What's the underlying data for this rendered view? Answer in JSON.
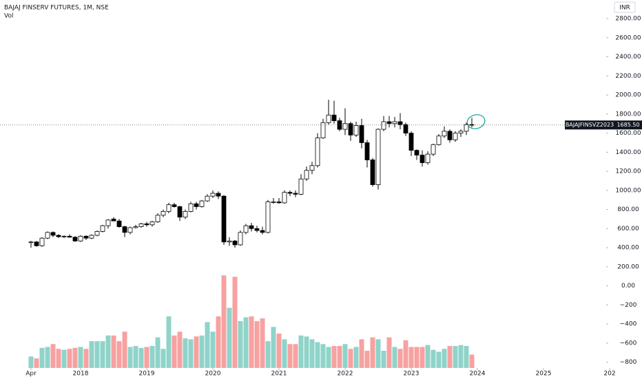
{
  "chart_data": {
    "type": "candlestick",
    "title": "BAJAJ FINSERV FUTURES, 1M, NSE",
    "currency": "INR",
    "x": [
      "2017-04",
      "2017-05",
      "2017-06",
      "2017-07",
      "2017-08",
      "2017-09",
      "2017-10",
      "2017-11",
      "2017-12",
      "2018-01",
      "2018-02",
      "2018-03",
      "2018-04",
      "2018-05",
      "2018-06",
      "2018-07",
      "2018-08",
      "2018-09",
      "2018-10",
      "2018-11",
      "2018-12",
      "2019-01",
      "2019-02",
      "2019-03",
      "2019-04",
      "2019-05",
      "2019-06",
      "2019-07",
      "2019-08",
      "2019-09",
      "2019-10",
      "2019-11",
      "2019-12",
      "2020-01",
      "2020-02",
      "2020-03",
      "2020-04",
      "2020-05",
      "2020-06",
      "2020-07",
      "2020-08",
      "2020-09",
      "2020-10",
      "2020-11",
      "2020-12",
      "2021-01",
      "2021-02",
      "2021-03",
      "2021-04",
      "2021-05",
      "2021-06",
      "2021-07",
      "2021-08",
      "2021-09",
      "2021-10",
      "2021-11",
      "2021-12",
      "2022-01",
      "2022-02",
      "2022-03",
      "2022-04",
      "2022-05",
      "2022-06",
      "2022-07",
      "2022-08",
      "2022-09",
      "2022-10",
      "2022-11",
      "2022-12",
      "2023-01",
      "2023-02",
      "2023-03",
      "2023-04",
      "2023-05",
      "2023-06",
      "2023-07",
      "2023-08",
      "2023-09",
      "2023-10",
      "2023-11",
      "2023-12"
    ],
    "open": [
      455,
      460,
      420,
      500,
      560,
      530,
      515,
      520,
      510,
      470,
      520,
      500,
      530,
      570,
      630,
      700,
      680,
      620,
      560,
      610,
      620,
      650,
      640,
      670,
      740,
      780,
      850,
      830,
      720,
      780,
      860,
      830,
      890,
      940,
      970,
      940,
      460,
      470,
      430,
      560,
      630,
      600,
      580,
      560,
      880,
      880,
      870,
      980,
      970,
      960,
      1120,
      1210,
      1260,
      1550,
      1710,
      1790,
      1730,
      1640,
      1700,
      1580,
      1680,
      1500,
      1320,
      1060,
      1640,
      1720,
      1700,
      1720,
      1690,
      1600,
      1420,
      1370,
      1290,
      1380,
      1480,
      1570,
      1620,
      1530,
      1600,
      1620,
      1690
    ],
    "high": [
      470,
      470,
      510,
      570,
      570,
      540,
      530,
      540,
      520,
      530,
      530,
      540,
      580,
      640,
      700,
      720,
      700,
      630,
      620,
      640,
      660,
      670,
      680,
      760,
      800,
      870,
      870,
      840,
      800,
      880,
      880,
      900,
      960,
      1000,
      990,
      950,
      510,
      480,
      580,
      650,
      660,
      630,
      620,
      900,
      920,
      920,
      1000,
      1000,
      1000,
      1170,
      1250,
      1300,
      1600,
      1750,
      1950,
      1940,
      1760,
      1860,
      1720,
      1720,
      1750,
      1530,
      1340,
      1650,
      1780,
      1780,
      1770,
      1810,
      1710,
      1620,
      1430,
      1420,
      1410,
      1490,
      1590,
      1670,
      1640,
      1620,
      1640,
      1710,
      1760
    ],
    "low": [
      400,
      410,
      410,
      490,
      510,
      500,
      500,
      505,
      460,
      460,
      480,
      490,
      520,
      560,
      600,
      680,
      610,
      510,
      540,
      600,
      610,
      620,
      620,
      660,
      720,
      760,
      820,
      680,
      700,
      770,
      800,
      820,
      880,
      920,
      910,
      430,
      420,
      400,
      420,
      540,
      570,
      560,
      540,
      550,
      860,
      860,
      860,
      940,
      930,
      950,
      1100,
      1170,
      1240,
      1540,
      1690,
      1700,
      1620,
      1580,
      1520,
      1560,
      1440,
      1240,
      1040,
      1010,
      1620,
      1660,
      1660,
      1640,
      1570,
      1360,
      1320,
      1250,
      1270,
      1360,
      1470,
      1550,
      1500,
      1510,
      1560,
      1580,
      1660
    ],
    "close": [
      460,
      420,
      500,
      560,
      530,
      515,
      520,
      510,
      470,
      520,
      500,
      530,
      570,
      630,
      690,
      680,
      620,
      560,
      610,
      620,
      650,
      640,
      670,
      740,
      780,
      850,
      830,
      720,
      780,
      860,
      830,
      890,
      940,
      970,
      940,
      460,
      470,
      430,
      560,
      630,
      600,
      580,
      560,
      880,
      880,
      870,
      980,
      970,
      960,
      1120,
      1210,
      1260,
      1550,
      1710,
      1790,
      1730,
      1640,
      1700,
      1580,
      1680,
      1500,
      1320,
      1060,
      1640,
      1720,
      1700,
      1720,
      1690,
      1600,
      1420,
      1370,
      1290,
      1380,
      1480,
      1570,
      1620,
      1530,
      1600,
      1620,
      1690,
      1685.5
    ],
    "up_color": "#ffffff",
    "down_color": "#000000",
    "volume": {
      "name": "Vol",
      "up_color": "#8fd3c9",
      "down_color": "#f7a1a1",
      "values": [
        -740,
        -760,
        -650,
        -640,
        -610,
        -660,
        -670,
        -660,
        -650,
        -640,
        -660,
        -580,
        -580,
        -580,
        -520,
        -520,
        -580,
        -480,
        -640,
        -630,
        -650,
        -640,
        -630,
        -540,
        -660,
        -320,
        -520,
        -480,
        -550,
        -560,
        -530,
        -520,
        -380,
        -480,
        -320,
        110,
        -230,
        95,
        -370,
        -330,
        -320,
        -370,
        -340,
        -580,
        -430,
        -500,
        -560,
        -610,
        -610,
        -520,
        -530,
        -560,
        -590,
        -610,
        -640,
        -630,
        -630,
        -610,
        -660,
        -640,
        -560,
        -680,
        -540,
        -560,
        -680,
        -540,
        -640,
        -660,
        -570,
        -640,
        -640,
        -640,
        -620,
        -670,
        -690,
        -660,
        -630,
        -630,
        -620,
        -630,
        -720
      ]
    },
    "last_price": {
      "symbol": "BAJAJFINSVZ2023",
      "value": 1685.5,
      "label": "1685.50"
    },
    "ylim": [
      -860,
      2995
    ],
    "yticks": [
      {
        "value": 2800,
        "label": "2800.00"
      },
      {
        "value": 2600,
        "label": "2600.00"
      },
      {
        "value": 2400,
        "label": "2400.00"
      },
      {
        "value": 2200,
        "label": "2200.00"
      },
      {
        "value": 2000,
        "label": "2000.00"
      },
      {
        "value": 1800,
        "label": "1800.00"
      },
      {
        "value": 1600,
        "label": "1600.00"
      },
      {
        "value": 1400,
        "label": "1400.00"
      },
      {
        "value": 1200,
        "label": "1200.00"
      },
      {
        "value": 1000,
        "label": "1000.00"
      },
      {
        "value": 800,
        "label": "800.00"
      },
      {
        "value": 600,
        "label": "600.00"
      },
      {
        "value": 400,
        "label": "400.00"
      },
      {
        "value": 200,
        "label": "200.00"
      },
      {
        "value": 0,
        "label": "0.00"
      },
      {
        "value": -200,
        "label": "−200"
      },
      {
        "value": -400,
        "label": "−400"
      },
      {
        "value": -600,
        "label": "−600"
      },
      {
        "value": -800,
        "label": "−800"
      }
    ],
    "xticks": [
      {
        "value": "2017-04",
        "label": "Apr"
      },
      {
        "value": "2018-01",
        "label": "2018"
      },
      {
        "value": "2019-01",
        "label": "2019"
      },
      {
        "value": "2020-01",
        "label": "2020"
      },
      {
        "value": "2021-01",
        "label": "2021"
      },
      {
        "value": "2022-01",
        "label": "2022"
      },
      {
        "value": "2023-01",
        "label": "2023"
      },
      {
        "value": "2024-01",
        "label": "2024"
      },
      {
        "value": "2025-01",
        "label": "2025"
      },
      {
        "value": "2026-01",
        "label": "202"
      }
    ]
  }
}
